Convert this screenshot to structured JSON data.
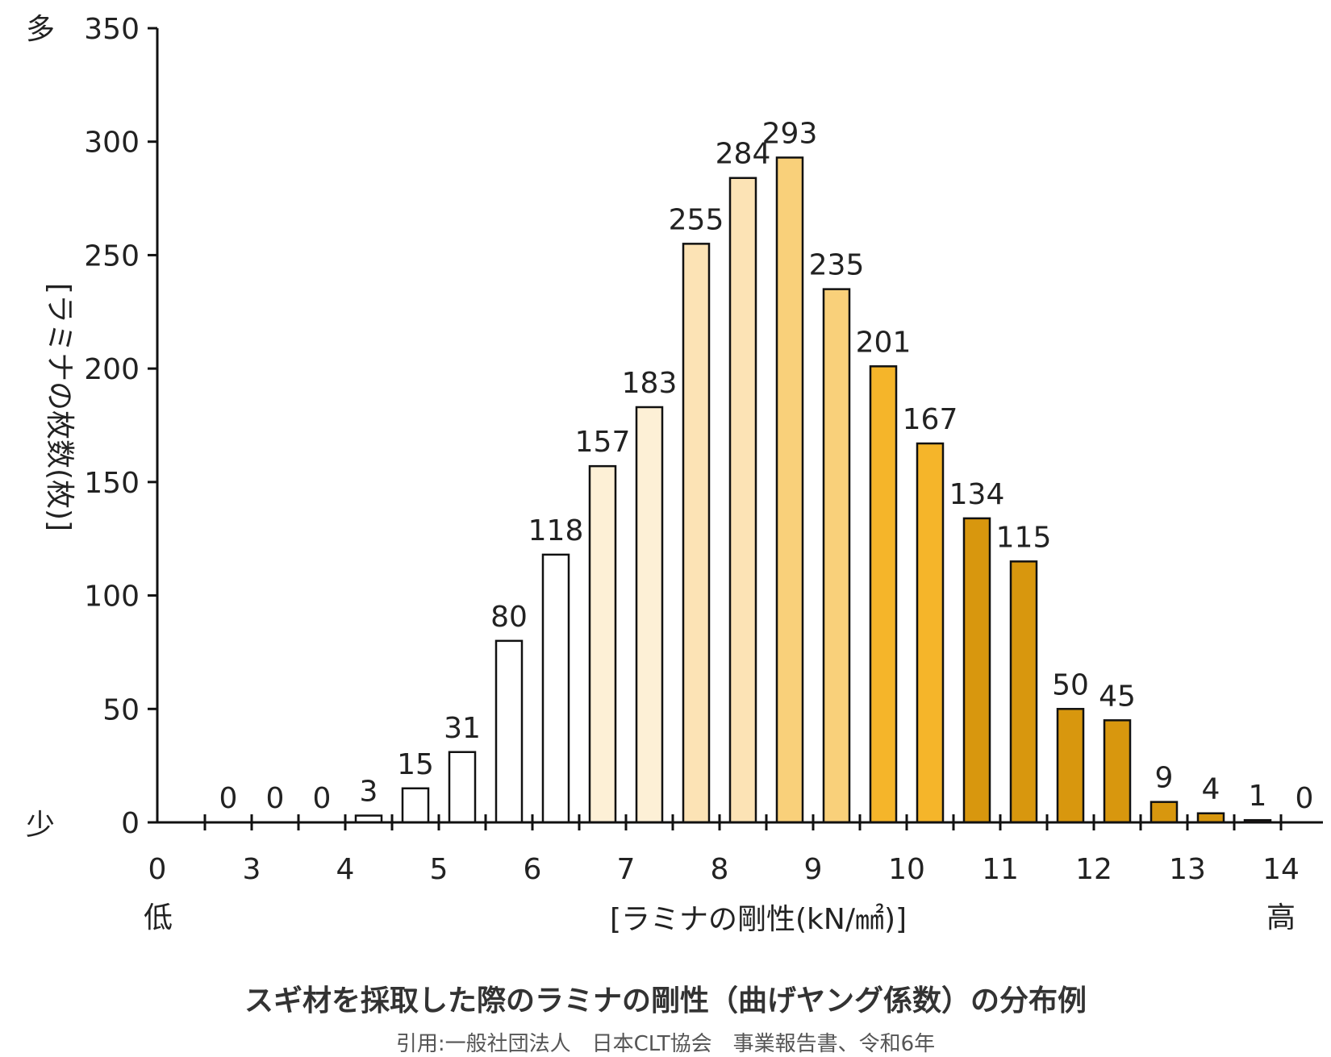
{
  "chart_data": {
    "type": "bar",
    "title": "スギ材を採取した際のラミナの剛性（曲げヤング係数）の分布例",
    "source": "引用:一般社団法人　日本CLT協会　事業報告書、令和6年",
    "xlabel": "[ラミナの剛性(kN/㎟)]",
    "ylabel": "[ラミナの枚数(枚)]",
    "x_low_label": "低",
    "x_high_label": "高",
    "y_high_label": "多",
    "y_low_label": "少",
    "ylim": [
      0,
      350
    ],
    "yticks": [
      0,
      50,
      100,
      150,
      200,
      250,
      300,
      350
    ],
    "xticks": [
      "0",
      "3",
      "4",
      "5",
      "6",
      "7",
      "8",
      "9",
      "10",
      "11",
      "12",
      "13",
      "14"
    ],
    "values": [
      0,
      0,
      0,
      3,
      15,
      31,
      80,
      118,
      157,
      183,
      255,
      284,
      293,
      235,
      201,
      167,
      134,
      115,
      50,
      45,
      9,
      4,
      1,
      0
    ],
    "colors": [
      "#ffffff",
      "#ffffff",
      "#ffffff",
      "#ffffff",
      "#ffffff",
      "#ffffff",
      "#ffffff",
      "#ffffff",
      "#fdf0d6",
      "#fdf0d6",
      "#fce3b5",
      "#fce3b5",
      "#f9d07a",
      "#f9d07a",
      "#f5b52a",
      "#f5b52a",
      "#d8970e",
      "#d8970e",
      "#d8970e",
      "#d8970e",
      "#d8970e",
      "#d8970e",
      "#a0522d",
      "#ffffff"
    ],
    "grid": false
  }
}
